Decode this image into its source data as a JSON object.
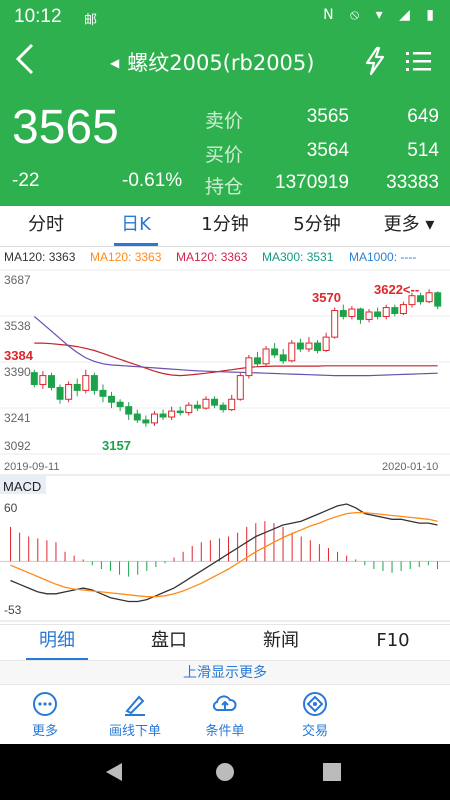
{
  "status": {
    "time": "10:12",
    "msg_icon": "邮",
    "icons": "N ⦸ ▾ ◢ ▮"
  },
  "header": {
    "title": "螺纹2005(rb2005)"
  },
  "quote": {
    "price": "3565",
    "change": "-22",
    "change_pct": "-0.61%",
    "rows": [
      {
        "label": "卖价",
        "v1": "3565",
        "v2": "649"
      },
      {
        "label": "买价",
        "v1": "3564",
        "v2": "514"
      },
      {
        "label": "持仓",
        "v1": "1370919",
        "v2": "33383"
      }
    ]
  },
  "tabs": [
    {
      "label": "分时"
    },
    {
      "label": "日K"
    },
    {
      "label": "1分钟"
    },
    {
      "label": "5分钟"
    },
    {
      "label": "更多 ▾"
    }
  ],
  "ma_legend": [
    {
      "text": "MA120: 3363",
      "color": "#333333"
    },
    {
      "text": "MA120: 3363",
      "color": "#ff8c1a"
    },
    {
      "text": "MA120: 3363",
      "color": "#d6224b"
    },
    {
      "text": "MA300: 3531",
      "color": "#159a85"
    },
    {
      "text": "MA1000: ----",
      "color": "#2d7fd3"
    }
  ],
  "chart_data": [
    {
      "type": "candlestick",
      "y_ticks": [
        "3687",
        "3538",
        "3390",
        "3241",
        "3092"
      ],
      "ylim": [
        3092,
        3687
      ],
      "date_labels": [
        "2019-09-11",
        "2020-01-10"
      ],
      "annotations": [
        "3384",
        "3157",
        "3570",
        "3622<--"
      ],
      "candles": [
        {
          "o": 3340,
          "c": 3300,
          "h": 3350,
          "l": 3290
        },
        {
          "o": 3300,
          "c": 3330,
          "h": 3345,
          "l": 3285
        },
        {
          "o": 3330,
          "c": 3290,
          "h": 3340,
          "l": 3280
        },
        {
          "o": 3290,
          "c": 3250,
          "h": 3300,
          "l": 3235
        },
        {
          "o": 3250,
          "c": 3300,
          "h": 3310,
          "l": 3240
        },
        {
          "o": 3300,
          "c": 3280,
          "h": 3320,
          "l": 3260
        },
        {
          "o": 3280,
          "c": 3330,
          "h": 3350,
          "l": 3270
        },
        {
          "o": 3330,
          "c": 3280,
          "h": 3340,
          "l": 3265
        },
        {
          "o": 3280,
          "c": 3260,
          "h": 3300,
          "l": 3240
        },
        {
          "o": 3260,
          "c": 3240,
          "h": 3275,
          "l": 3220
        },
        {
          "o": 3240,
          "c": 3225,
          "h": 3250,
          "l": 3210
        },
        {
          "o": 3225,
          "c": 3200,
          "h": 3240,
          "l": 3180
        },
        {
          "o": 3200,
          "c": 3180,
          "h": 3215,
          "l": 3170
        },
        {
          "o": 3180,
          "c": 3170,
          "h": 3195,
          "l": 3157
        },
        {
          "o": 3170,
          "c": 3200,
          "h": 3210,
          "l": 3160
        },
        {
          "o": 3200,
          "c": 3190,
          "h": 3215,
          "l": 3180
        },
        {
          "o": 3190,
          "c": 3210,
          "h": 3225,
          "l": 3180
        },
        {
          "o": 3210,
          "c": 3205,
          "h": 3225,
          "l": 3195
        },
        {
          "o": 3205,
          "c": 3230,
          "h": 3240,
          "l": 3195
        },
        {
          "o": 3230,
          "c": 3220,
          "h": 3245,
          "l": 3210
        },
        {
          "o": 3220,
          "c": 3250,
          "h": 3260,
          "l": 3215
        },
        {
          "o": 3250,
          "c": 3230,
          "h": 3260,
          "l": 3220
        },
        {
          "o": 3230,
          "c": 3215,
          "h": 3240,
          "l": 3205
        },
        {
          "o": 3215,
          "c": 3250,
          "h": 3265,
          "l": 3210
        },
        {
          "o": 3250,
          "c": 3330,
          "h": 3340,
          "l": 3245
        },
        {
          "o": 3330,
          "c": 3390,
          "h": 3400,
          "l": 3320
        },
        {
          "o": 3390,
          "c": 3370,
          "h": 3410,
          "l": 3360
        },
        {
          "o": 3370,
          "c": 3420,
          "h": 3430,
          "l": 3360
        },
        {
          "o": 3420,
          "c": 3400,
          "h": 3440,
          "l": 3390
        },
        {
          "o": 3400,
          "c": 3380,
          "h": 3420,
          "l": 3370
        },
        {
          "o": 3380,
          "c": 3440,
          "h": 3450,
          "l": 3375
        },
        {
          "o": 3440,
          "c": 3420,
          "h": 3455,
          "l": 3410
        },
        {
          "o": 3420,
          "c": 3440,
          "h": 3460,
          "l": 3410
        },
        {
          "o": 3440,
          "c": 3415,
          "h": 3450,
          "l": 3405
        },
        {
          "o": 3415,
          "c": 3460,
          "h": 3475,
          "l": 3410
        },
        {
          "o": 3460,
          "c": 3550,
          "h": 3560,
          "l": 3455
        },
        {
          "o": 3550,
          "c": 3530,
          "h": 3570,
          "l": 3520
        },
        {
          "o": 3530,
          "c": 3555,
          "h": 3565,
          "l": 3520
        },
        {
          "o": 3555,
          "c": 3520,
          "h": 3560,
          "l": 3505
        },
        {
          "o": 3520,
          "c": 3545,
          "h": 3555,
          "l": 3510
        },
        {
          "o": 3545,
          "c": 3530,
          "h": 3560,
          "l": 3520
        },
        {
          "o": 3530,
          "c": 3560,
          "h": 3570,
          "l": 3520
        },
        {
          "o": 3560,
          "c": 3540,
          "h": 3570,
          "l": 3530
        },
        {
          "o": 3540,
          "c": 3570,
          "h": 3580,
          "l": 3535
        },
        {
          "o": 3570,
          "c": 3600,
          "h": 3610,
          "l": 3560
        },
        {
          "o": 3600,
          "c": 3580,
          "h": 3610,
          "l": 3570
        },
        {
          "o": 3580,
          "c": 3610,
          "h": 3622,
          "l": 3575
        },
        {
          "o": 3610,
          "c": 3565,
          "h": 3615,
          "l": 3555
        }
      ],
      "ma_red": [
        3440,
        3440,
        3438,
        3435,
        3432,
        3428,
        3422,
        3415,
        3405,
        3395,
        3385,
        3375,
        3365,
        3355,
        3345,
        3337,
        3332,
        3330,
        3332,
        3335,
        3338,
        3342,
        3346,
        3350,
        3354,
        3358,
        3360,
        3361,
        3362,
        3362,
        3362,
        3362,
        3362,
        3362,
        3363,
        3363,
        3363,
        3363,
        3363,
        3363,
        3363,
        3363,
        3363,
        3363,
        3363,
        3363,
        3363,
        3363
      ],
      "ma_purple": [
        3530,
        3505,
        3480,
        3455,
        3430,
        3408,
        3390,
        3378,
        3370,
        3366,
        3364,
        3362,
        3360,
        3358,
        3356,
        3354,
        3352,
        3350,
        3348,
        3346,
        3345,
        3344,
        3343,
        3342,
        3341,
        3340,
        3339,
        3338,
        3337,
        3336,
        3335,
        3334,
        3333,
        3332,
        3331,
        3330,
        3330,
        3330,
        3330,
        3330,
        3331,
        3332,
        3333,
        3334,
        3335,
        3336,
        3337,
        3338
      ]
    },
    {
      "type": "macd",
      "title": "MACD",
      "y_ticks": [
        "60",
        "-53"
      ],
      "ylim": [
        -53,
        60
      ],
      "hist": [
        36,
        30,
        26,
        24,
        22,
        20,
        10,
        6,
        2,
        -4,
        -8,
        -10,
        -14,
        -16,
        -14,
        -10,
        -6,
        -2,
        4,
        10,
        16,
        20,
        22,
        24,
        26,
        30,
        36,
        40,
        42,
        40,
        36,
        30,
        26,
        22,
        18,
        14,
        10,
        6,
        2,
        -4,
        -8,
        -10,
        -12,
        -10,
        -8,
        -6,
        -4,
        -8
      ],
      "dif": [
        -20,
        -24,
        -28,
        -32,
        -34,
        -34,
        -32,
        -30,
        -28,
        -30,
        -34,
        -38,
        -40,
        -42,
        -42,
        -40,
        -36,
        -32,
        -28,
        -22,
        -16,
        -10,
        -4,
        2,
        8,
        14,
        20,
        26,
        30,
        34,
        38,
        40,
        42,
        46,
        50,
        54,
        58,
        60,
        56,
        50,
        48,
        46,
        44,
        44,
        42,
        40,
        40,
        38
      ],
      "dea": [
        -4,
        -8,
        -12,
        -16,
        -20,
        -24,
        -27,
        -29,
        -30,
        -31,
        -32,
        -33,
        -34,
        -35,
        -36,
        -37,
        -37,
        -36,
        -34,
        -31,
        -27,
        -23,
        -18,
        -13,
        -8,
        -2,
        4,
        10,
        15,
        20,
        25,
        29,
        33,
        37,
        40,
        44,
        47,
        50,
        51,
        51,
        50,
        49,
        48,
        47,
        46,
        45,
        44,
        42
      ]
    }
  ],
  "bottom_tabs": [
    {
      "label": "明细"
    },
    {
      "label": "盘口"
    },
    {
      "label": "新闻"
    },
    {
      "label": "F10"
    }
  ],
  "more_hint": "上滑显示更多",
  "toolbar": [
    {
      "label": "更多",
      "icon": "more-icon"
    },
    {
      "label": "画线下单",
      "icon": "draw-line-icon"
    },
    {
      "label": "条件单",
      "icon": "cloud-upload-icon"
    },
    {
      "label": "交易",
      "icon": "trade-icon"
    }
  ],
  "colors": {
    "green": "#2fb04e",
    "up": "#e0252b",
    "down": "#1ca34a",
    "accent": "#2979d6"
  }
}
